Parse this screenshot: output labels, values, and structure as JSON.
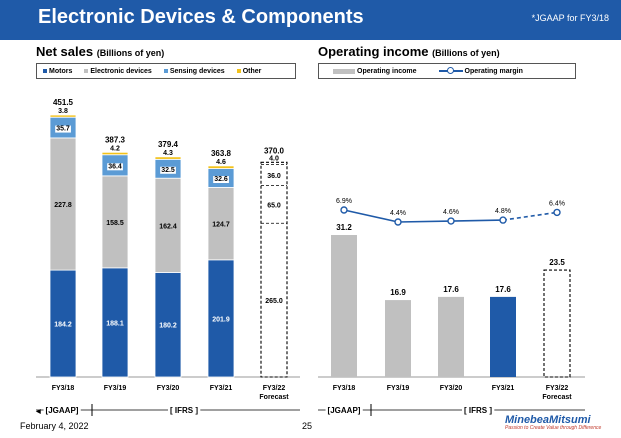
{
  "header": {
    "title": "Electronic Devices & Components",
    "note": "*JGAAP for FY3/18"
  },
  "colors": {
    "header_bg": "#1f5aa8",
    "motors": "#1f5aa8",
    "electronic": "#c0c0c0",
    "sensing": "#5b9bd5",
    "other": "#f2c21b",
    "op_bar": "#c0c0c0",
    "op_bar_highlight": "#1f5aa8",
    "margin_line": "#1f5aa8"
  },
  "left": {
    "title": "Net sales",
    "unit": "(Billions of yen)",
    "legend": [
      "Motors",
      "Electronic devices",
      "Sensing devices",
      "Other"
    ]
  },
  "right": {
    "title": "Operating income",
    "unit": "(Billions of yen)",
    "legend": [
      "Operating income",
      "Operating margin"
    ]
  },
  "chart_data": [
    {
      "type": "bar",
      "stacked": true,
      "categories": [
        "FY3/18",
        "FY3/19",
        "FY3/20",
        "FY3/21",
        "FY3/22\nForecast"
      ],
      "series": [
        {
          "name": "Motors",
          "values": [
            184.2,
            188.1,
            180.2,
            201.9,
            265.0
          ]
        },
        {
          "name": "Electronic devices",
          "values": [
            227.8,
            158.5,
            162.4,
            124.7,
            65.0
          ]
        },
        {
          "name": "Sensing devices",
          "values": [
            35.7,
            36.4,
            32.5,
            32.6,
            36.0
          ]
        },
        {
          "name": "Other",
          "values": [
            3.8,
            4.2,
            4.3,
            4.6,
            4.0
          ]
        }
      ],
      "totals": [
        451.5,
        387.3,
        379.4,
        363.8,
        370.0
      ],
      "forecast_index": 4,
      "title": "Net sales",
      "ylim": [
        0,
        470
      ],
      "periods": [
        {
          "label": "[JGAAP]",
          "from": 0,
          "to": 0
        },
        {
          "label": "[ IFRS ]",
          "from": 1,
          "to": 4
        }
      ]
    },
    {
      "type": "bar",
      "categories": [
        "FY3/18",
        "FY3/19",
        "FY3/20",
        "FY3/21",
        "FY3/22\nForecast"
      ],
      "series": [
        {
          "name": "Operating income",
          "values": [
            31.2,
            16.9,
            17.6,
            17.6,
            23.5
          ]
        }
      ],
      "line_series": {
        "name": "Operating margin",
        "values": [
          6.9,
          4.4,
          4.6,
          4.8,
          6.4
        ],
        "labels": [
          "6.9%",
          "4.4%",
          "4.6%",
          "4.8%",
          "6.4%"
        ]
      },
      "highlight_index": 3,
      "forecast_index": 4,
      "title": "Operating income",
      "ylim": [
        0,
        41
      ],
      "periods": [
        {
          "label": "[JGAAP]",
          "from": 0,
          "to": 0
        },
        {
          "label": "[ IFRS ]",
          "from": 1,
          "to": 4
        }
      ]
    }
  ],
  "footer": {
    "date": "February 4, 2022",
    "page": "25",
    "logo": "MinebeaMitsumi",
    "tagline": "Passion to Create Value through Difference"
  }
}
